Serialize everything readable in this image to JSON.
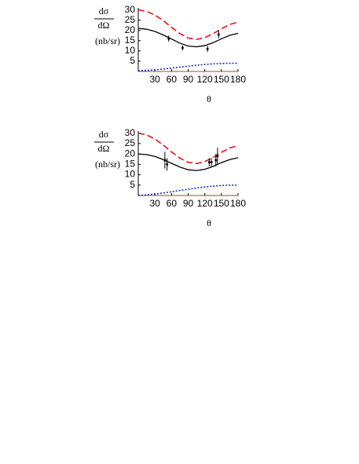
{
  "chart_data": [
    {
      "type": "line",
      "y_label_top": "dσ",
      "y_label_bottom": "dΩ",
      "y_unit": "(nb/sr)",
      "x_label": "θ",
      "xlim": [
        0,
        180
      ],
      "ylim": [
        0,
        31
      ],
      "xticks": [
        30,
        60,
        90,
        120,
        150,
        180
      ],
      "yticks": [
        5,
        10,
        15,
        20,
        25,
        30
      ],
      "x": [
        0,
        15,
        30,
        45,
        60,
        75,
        90,
        105,
        120,
        135,
        150,
        165,
        180
      ],
      "series": [
        {
          "color": "#e8141c",
          "style": "dashed",
          "values": [
            30,
            29.3,
            27.5,
            24.8,
            21.5,
            18.5,
            16.3,
            15.6,
            16.5,
            18.4,
            20.8,
            22.9,
            24.0
          ]
        },
        {
          "color": "#000000",
          "style": "solid",
          "values": [
            21,
            20.6,
            19.5,
            17.8,
            15.8,
            13.8,
            12.4,
            12.0,
            12.6,
            14.0,
            15.9,
            17.6,
            18.6
          ]
        },
        {
          "color": "#1a2ccc",
          "style": "dotted",
          "values": [
            0.3,
            0.5,
            0.8,
            1.2,
            1.6,
            2.1,
            2.6,
            3.0,
            3.4,
            3.7,
            3.9,
            4.0,
            4.0
          ]
        }
      ],
      "points": {
        "color": "#000000",
        "x": [
          55,
          80,
          125,
          145
        ],
        "values": [
          16,
          11.5,
          11,
          18
        ],
        "errors": [
          1.5,
          1.2,
          1.5,
          1.8
        ]
      }
    },
    {
      "type": "line",
      "y_label_top": "dσ",
      "y_label_bottom": "dΩ",
      "y_unit": "(nb/sr)",
      "x_label": "θ",
      "xlim": [
        0,
        180
      ],
      "ylim": [
        0,
        31
      ],
      "xticks": [
        30,
        60,
        90,
        120,
        150,
        180
      ],
      "yticks": [
        5,
        10,
        15,
        20,
        25,
        30
      ],
      "x": [
        0,
        15,
        30,
        45,
        60,
        75,
        90,
        105,
        120,
        135,
        150,
        165,
        180
      ],
      "series": [
        {
          "color": "#e8141c",
          "style": "dashed",
          "values": [
            30,
            29.2,
            27.2,
            24.3,
            21.0,
            18.0,
            16.0,
            15.4,
            16.3,
            18.3,
            20.8,
            22.9,
            24.0
          ]
        },
        {
          "color": "#000000",
          "style": "solid",
          "values": [
            20,
            19.7,
            18.8,
            17.3,
            15.5,
            13.7,
            12.4,
            12.0,
            12.6,
            14.0,
            15.8,
            17.3,
            18.2
          ]
        },
        {
          "color": "#1a2ccc",
          "style": "dotted",
          "values": [
            0,
            0.3,
            0.7,
            1.2,
            1.8,
            2.4,
            3.0,
            3.6,
            4.1,
            4.5,
            4.8,
            5.0,
            5.0
          ]
        }
      ],
      "points": {
        "color": "#000000",
        "x": [
          48,
          52,
          128,
          132,
          140,
          143
        ],
        "values": [
          17,
          15,
          16,
          16,
          17,
          19
        ],
        "errors": [
          4,
          3,
          2,
          2,
          3,
          4
        ]
      }
    }
  ]
}
